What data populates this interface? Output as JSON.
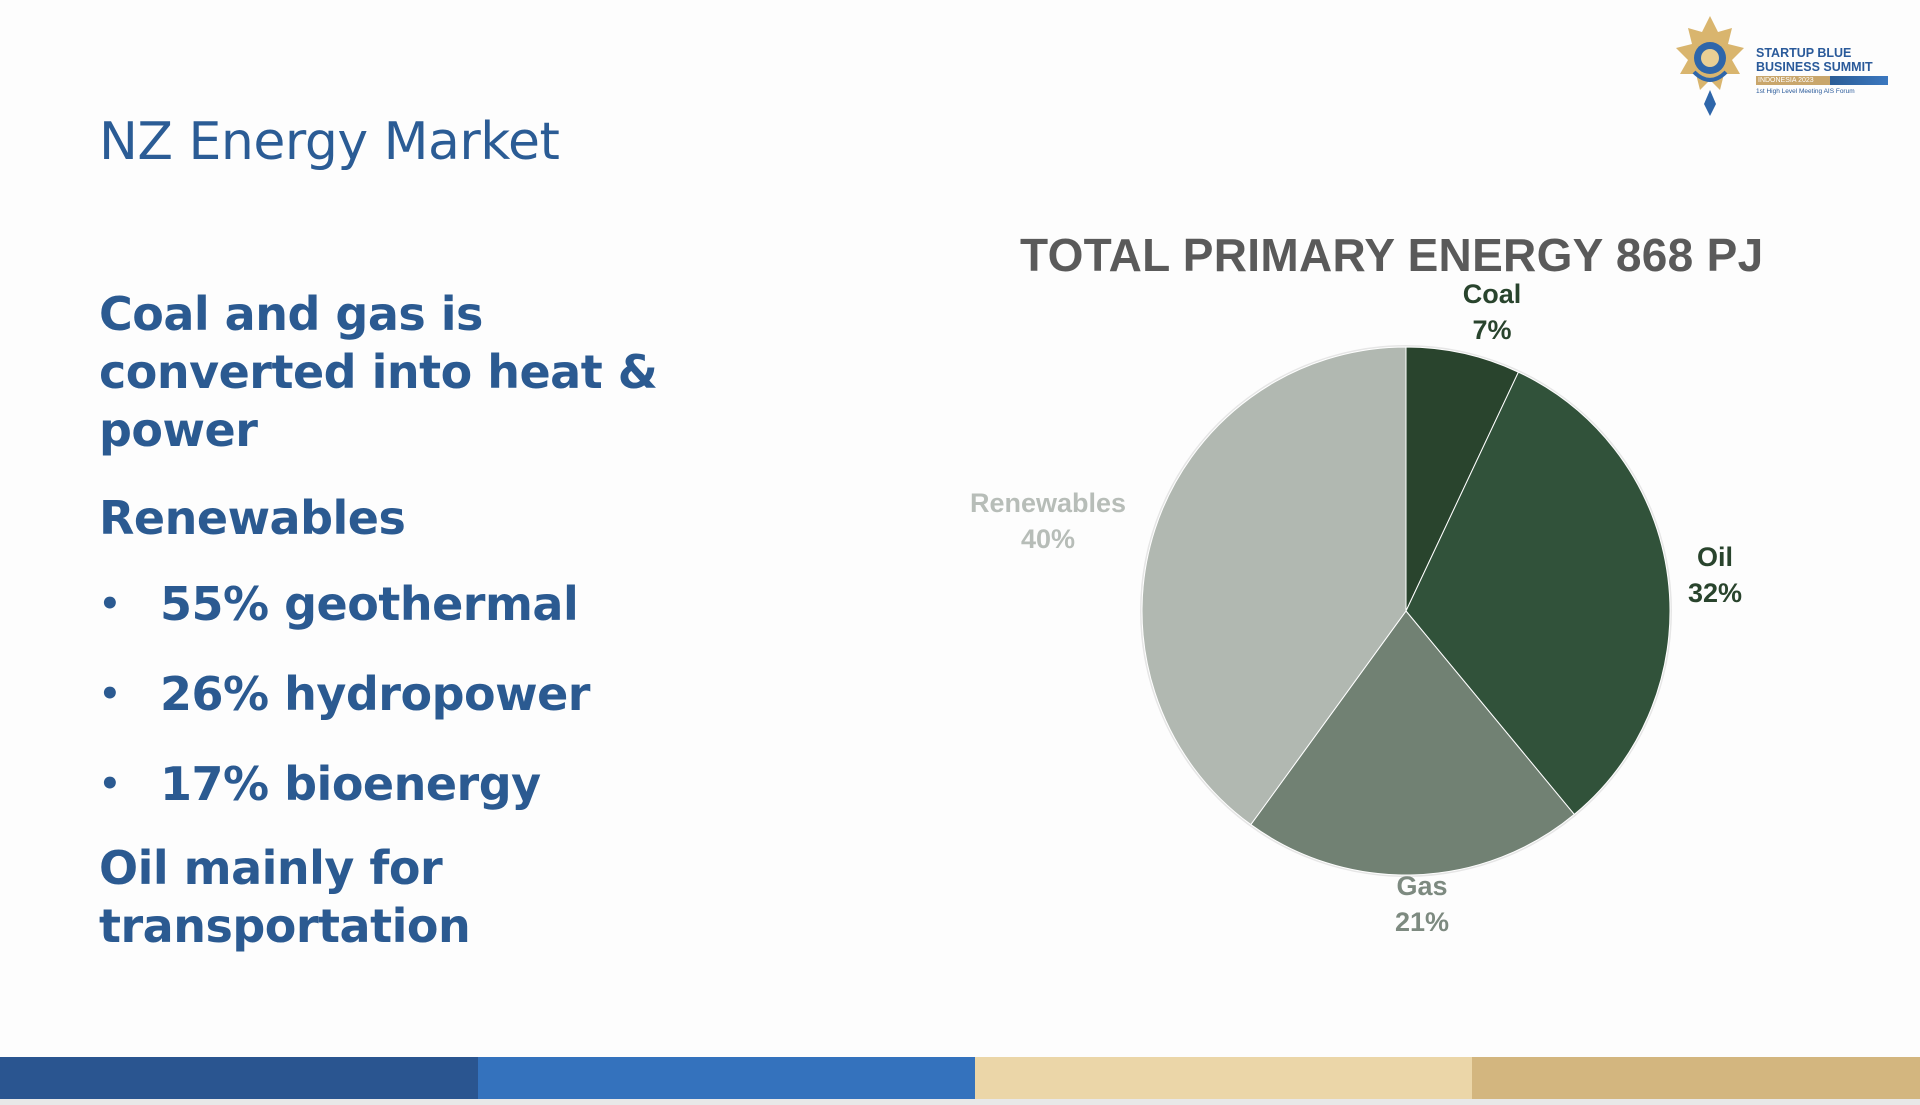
{
  "slide": {
    "title": "NZ Energy Market",
    "paragraphs": [
      "Coal and gas is converted into heat & power",
      "Renewables"
    ],
    "bullets": [
      "55% geothermal",
      "26% hydropower",
      "17% bioenergy"
    ],
    "closing": "Oil mainly for transportation",
    "bullet_char": "•"
  },
  "logo": {
    "line1": "STARTUP BLUE",
    "line2": "BUSINESS SUMMIT",
    "band": "INDONESIA 2023",
    "line3": "1st High Level Meeting AIS Forum"
  },
  "chart_data": {
    "type": "pie",
    "title": "TOTAL PRIMARY ENERGY 868 PJ",
    "slices": [
      {
        "name": "Coal",
        "value": 7,
        "label": "7%",
        "color": "#29442d",
        "label_color": "#29442d"
      },
      {
        "name": "Oil",
        "value": 32,
        "label": "32%",
        "color": "#31523a",
        "label_color": "#29442d"
      },
      {
        "name": "Gas",
        "value": 21,
        "label": "21%",
        "color": "#718173",
        "label_color": "#7d8a80"
      },
      {
        "name": "Renewables",
        "value": 40,
        "label": "40%",
        "color": "#b1b8b1",
        "label_color": "#b7bdb8"
      }
    ],
    "start_angle_deg": 0,
    "direction": "clockwise"
  },
  "footer": {
    "colors": [
      "#2a5590",
      "#3472bd",
      "#ebd6a8",
      "#d3b67f"
    ]
  }
}
